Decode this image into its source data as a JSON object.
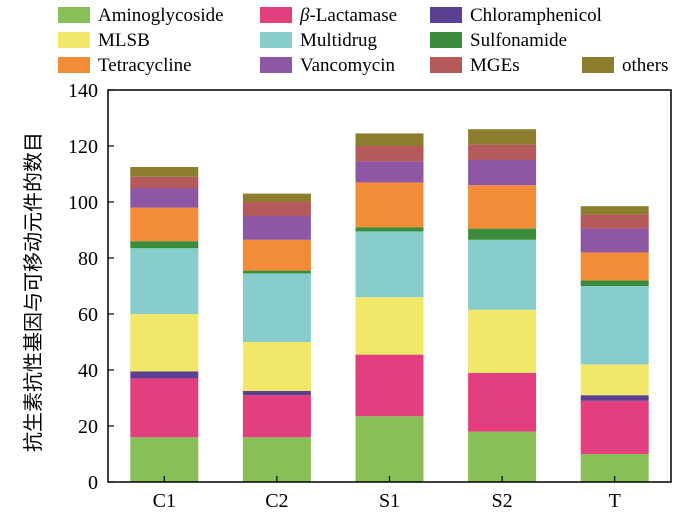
{
  "chart_data": {
    "type": "bar",
    "stacked": true,
    "title": "",
    "xlabel": "",
    "ylabel": "抗生素抗性基因与可移动元件的数目",
    "ylim": [
      0,
      140
    ],
    "yticks": [
      0,
      20,
      40,
      60,
      80,
      100,
      120,
      140
    ],
    "grid": false,
    "legend_position": "top",
    "categories": [
      "C1",
      "C2",
      "S1",
      "S2",
      "T"
    ],
    "series": [
      {
        "name": "Aminoglycoside",
        "color": "#88c057",
        "values": [
          16,
          16,
          23.5,
          18,
          10
        ]
      },
      {
        "name": "β-Lactamase",
        "color": "#e33f7f",
        "values": [
          21,
          15,
          22,
          21,
          19
        ]
      },
      {
        "name": "Chloramphenicol",
        "color": "#5b3f91",
        "values": [
          2.5,
          1.5,
          0,
          0,
          2
        ]
      },
      {
        "name": "MLSB",
        "color": "#f1e86a",
        "values": [
          20.5,
          17.5,
          20.5,
          22.5,
          11
        ]
      },
      {
        "name": "Multidrug",
        "color": "#86cdcb",
        "values": [
          23.5,
          24.5,
          23.5,
          25,
          28
        ]
      },
      {
        "name": "Sulfonamide",
        "color": "#3a8b3a",
        "values": [
          2.5,
          1,
          1.5,
          4,
          2
        ]
      },
      {
        "name": "Tetracycline",
        "color": "#f28c38",
        "values": [
          12,
          11,
          16,
          15.5,
          10
        ]
      },
      {
        "name": "Vancomycin",
        "color": "#8e57a3",
        "values": [
          7,
          8.5,
          7.5,
          9,
          8.5
        ]
      },
      {
        "name": "MGEs",
        "color": "#b55a5a",
        "values": [
          4,
          5,
          5.5,
          5.5,
          5
        ]
      },
      {
        "name": "others",
        "color": "#8c7e2e",
        "values": [
          3.5,
          3,
          4.5,
          5.5,
          3
        ]
      }
    ],
    "legend_grid": [
      [
        "Aminoglycoside",
        "β-Lactamase",
        "Chloramphenicol"
      ],
      [
        "MLSB",
        "Multidrug",
        "Sulfonamide"
      ],
      [
        "Tetracycline",
        "Vancomycin",
        "MGEs",
        "others"
      ]
    ]
  }
}
